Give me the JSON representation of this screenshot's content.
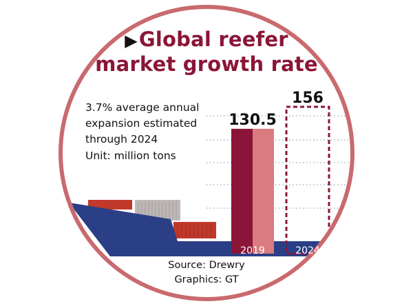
{
  "title": {
    "play_glyph": "▶",
    "line1": "Global reefer",
    "line2": "market growth rate"
  },
  "description": {
    "lines": [
      "3.7% average annual",
      "expansion estimated",
      "through 2024"
    ],
    "unit": "Unit: million tons"
  },
  "footer": {
    "source": "Source: Drewry",
    "graphics": "Graphics: GT"
  },
  "colors": {
    "ring": "#c96a6e",
    "title": "#8b1538",
    "bar_dark": "#8b1538",
    "bar_light": "#d97b7f",
    "projected_outline": "#8b1538",
    "ship_hull": "#2b3f86",
    "container_red": "#c0392b",
    "container_gray": "#bdb7b8",
    "gridline": "#9fb5cf"
  },
  "icons": [
    "play-icon",
    "cargo-ship-icon"
  ],
  "chart_data": {
    "type": "bar",
    "title": "Global reefer market growth rate",
    "categories": [
      "2019",
      "2024"
    ],
    "values": [
      130.5,
      156
    ],
    "value_labels": [
      "130.5",
      "156"
    ],
    "projected": [
      false,
      true
    ],
    "ylabel": "Unit: million tons",
    "ylim": [
      0,
      160
    ],
    "grid": true
  }
}
